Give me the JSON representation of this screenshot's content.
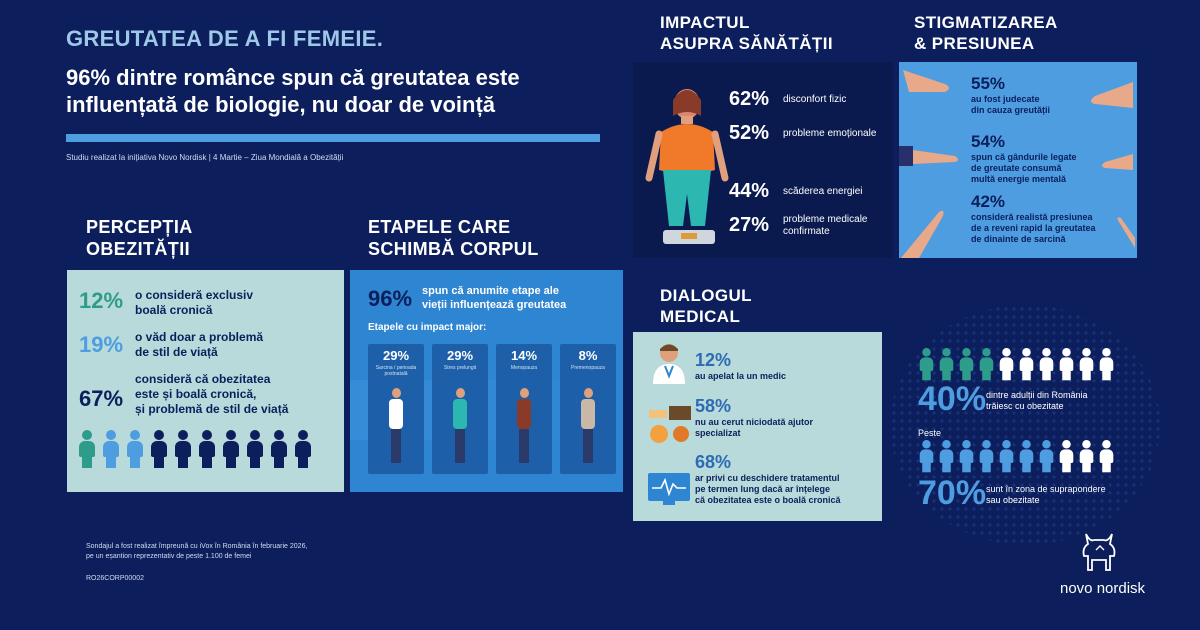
{
  "header": {
    "title": "GREUTATEA DE A FI FEMEIE.",
    "headline": "96% dintre românce spun că greutatea este influențată de biologie, nu doar de voință",
    "source": "Studiu realizat la inițiativa Novo Nordisk | 4 Martie – Ziua Mondială a Obezității"
  },
  "perceptie": {
    "title_line1": "PERCEPȚIA",
    "title_line2": "OBEZITĂȚII",
    "stats": [
      {
        "pct": "12%",
        "line1": "o consideră exclusiv",
        "line2": "boală cronică",
        "line3": "",
        "color": "#2e9c8a"
      },
      {
        "pct": "19%",
        "line1": "o văd doar a problemă",
        "line2": "de stil de viață",
        "line3": "",
        "color": "#4d9de0"
      },
      {
        "pct": "67%",
        "line1": "consideră că obezitatea",
        "line2": "este și boală cronică,",
        "line3": "și problemă de stil de viață",
        "color": "#0c1f5c"
      }
    ],
    "people_colors": [
      "#2e9c8a",
      "#4d9de0",
      "#4d9de0",
      "#0c1f5c",
      "#0c1f5c",
      "#0c1f5c",
      "#0c1f5c",
      "#0c1f5c",
      "#0c1f5c",
      "#0c1f5c"
    ]
  },
  "etape": {
    "title_line1": "ETAPELE CARE",
    "title_line2": "SCHIMBĂ CORPUL",
    "main_pct": "96%",
    "main_line1": "spun că anumite etape ale",
    "main_line2": "vieții influențează greutatea",
    "subtitle": "Etapele cu impact major:",
    "stages": [
      {
        "pct": "29%",
        "label": "Sarcina / perioada postnatală"
      },
      {
        "pct": "29%",
        "label": "Stres prelungit"
      },
      {
        "pct": "14%",
        "label": "Menopauza"
      },
      {
        "pct": "8%",
        "label": "Premenopauza"
      }
    ]
  },
  "impact": {
    "title_line1": "IMPACTUL",
    "title_line2": "ASUPRA SĂNĂTĂȚII",
    "stats": [
      {
        "pct": "62%",
        "line1": "disconfort fizic",
        "line2": ""
      },
      {
        "pct": "52%",
        "line1": "probleme emoționale",
        "line2": ""
      },
      {
        "pct": "44%",
        "line1": "scăderea energiei",
        "line2": ""
      },
      {
        "pct": "27%",
        "line1": "probleme medicale",
        "line2": "confirmate"
      }
    ]
  },
  "stigma": {
    "title_line1": "STIGMATIZAREA",
    "title_line2": "& PRESIUNEA",
    "stats": [
      {
        "pct": "55%",
        "line1": "au fost judecate",
        "line2": "din cauza greutății",
        "line3": ""
      },
      {
        "pct": "54%",
        "line1": "spun că gândurile legate",
        "line2": "de greutate consumă",
        "line3": "multă energie mentală"
      },
      {
        "pct": "42%",
        "line1": "consideră realistă presiunea",
        "line2": "de a reveni rapid la greutatea",
        "line3": "de dinainte de sarcină"
      }
    ]
  },
  "dialog": {
    "title_line1": "DIALOGUL",
    "title_line2": "MEDICAL",
    "stats": [
      {
        "pct": "12%",
        "line1": "au apelat la un medic",
        "line2": "",
        "line3": ""
      },
      {
        "pct": "58%",
        "line1": "nu au cerut niciodată ajutor",
        "line2": "specializat",
        "line3": ""
      },
      {
        "pct": "68%",
        "line1": "ar privi cu deschidere tratamentul",
        "line2": "pe termen lung dacă ar înțelege",
        "line3": "că obezitatea este o boală cronică"
      }
    ]
  },
  "adults": {
    "row1_pct": "40%",
    "row1_line1": "dintre adulții din România",
    "row1_line2": "trăiesc cu obezitate",
    "peste": "Peste",
    "row2_pct": "70%",
    "row2_line1": "sunt în zona de supraponderе",
    "row2_line2": "sau obezitate",
    "row1_colors": [
      "#2e9c8a",
      "#2e9c8a",
      "#2e9c8a",
      "#2e9c8a",
      "#ffffff",
      "#ffffff",
      "#ffffff",
      "#ffffff",
      "#ffffff",
      "#ffffff"
    ],
    "row2_colors": [
      "#4d9de0",
      "#4d9de0",
      "#4d9de0",
      "#4d9de0",
      "#4d9de0",
      "#4d9de0",
      "#4d9de0",
      "#ffffff",
      "#ffffff",
      "#ffffff"
    ]
  },
  "footer": {
    "line1": "Sondajul a fost realizat împreună cu iVox în România în februarie 2026,",
    "line2": "pe un eșantion reprezentativ de peste 1.100 de femei",
    "code": "RO26CORP00002"
  },
  "logo": {
    "text": "novo nordisk"
  }
}
